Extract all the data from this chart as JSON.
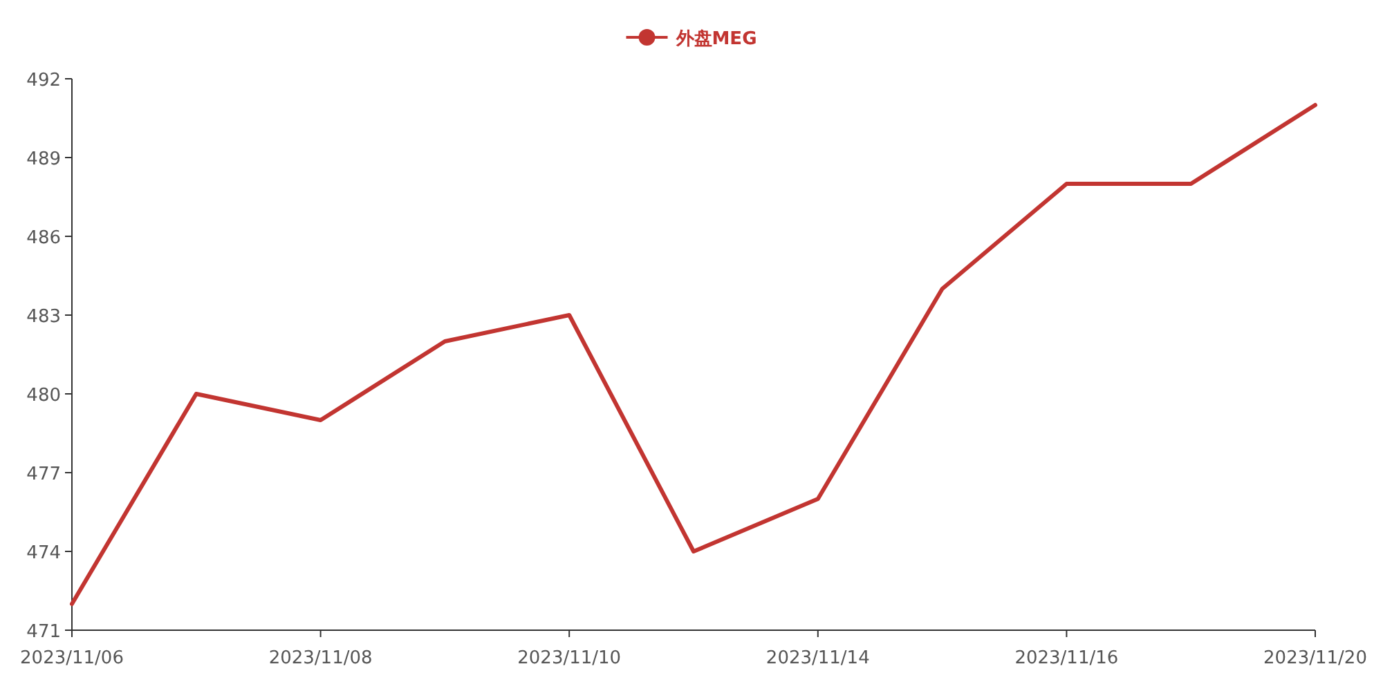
{
  "chart_data": {
    "type": "line",
    "categories": [
      "2023/11/06",
      null,
      "2023/11/08",
      null,
      "2023/11/10",
      null,
      "2023/11/14",
      null,
      "2023/11/16",
      null,
      "2023/11/20"
    ],
    "series": [
      {
        "name": "外盘MEG",
        "color": "#c23531",
        "values": [
          472,
          480,
          479,
          482,
          483,
          474,
          476,
          484,
          488,
          488,
          491
        ]
      }
    ],
    "ylim": [
      471,
      492
    ],
    "yticks": [
      471,
      474,
      477,
      480,
      483,
      486,
      489,
      492
    ],
    "legend": "top"
  }
}
